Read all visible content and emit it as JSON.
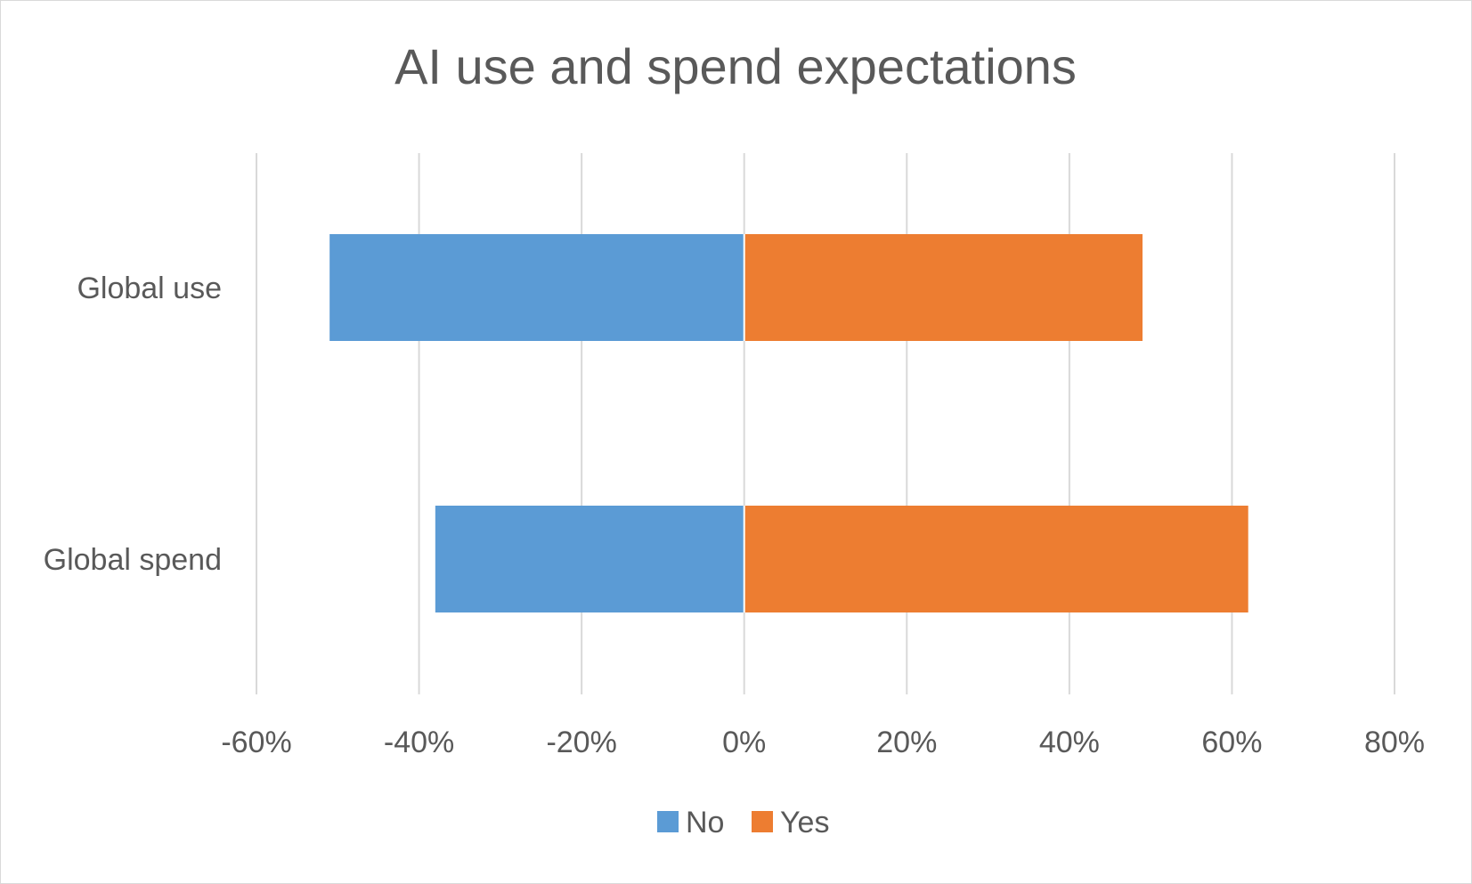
{
  "chart_data": {
    "type": "bar",
    "orientation": "horizontal",
    "stacked": true,
    "title": "AI use and spend expectations",
    "categories": [
      "Global use",
      "Global spend"
    ],
    "series": [
      {
        "name": "No",
        "color": "#5B9BD5",
        "values": [
          -0.51,
          -0.38
        ]
      },
      {
        "name": "Yes",
        "color": "#ED7D31",
        "values": [
          0.49,
          0.62
        ]
      }
    ],
    "xlim": [
      -0.6,
      0.8
    ],
    "xticks": [
      -0.6,
      -0.4,
      -0.2,
      0,
      0.2,
      0.4,
      0.6,
      0.8
    ],
    "xtick_labels": [
      "-60%",
      "-40%",
      "-20%",
      "0%",
      "20%",
      "40%",
      "60%",
      "80%"
    ],
    "xlabel": "",
    "ylabel": "",
    "grid": "vertical",
    "gridline_color": "#d9d9d9",
    "legend_position": "bottom"
  }
}
